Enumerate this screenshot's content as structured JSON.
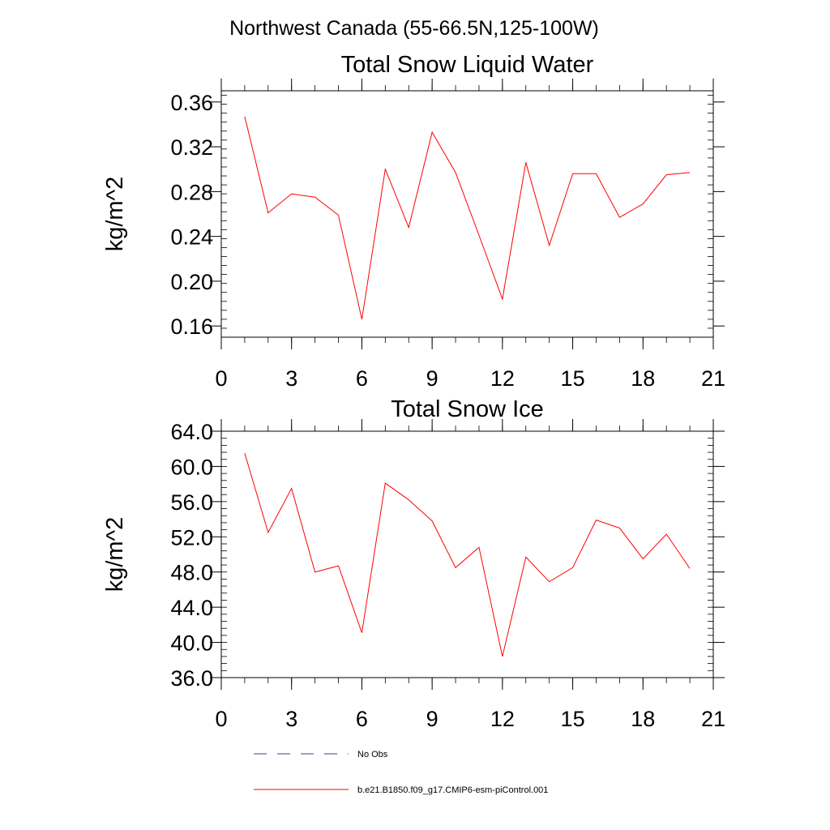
{
  "suptitle": "Northwest Canada (55-66.5N,125-100W)",
  "colors": {
    "series": "#ff0000",
    "obs": "#3b3f8f",
    "axis": "#000000"
  },
  "legend": [
    {
      "label": "No Obs",
      "style": "dashed",
      "color": "#3b3f8f"
    },
    {
      "label": "b.e21.B1850.f09_g17.CMIP6-esm-piControl.001",
      "style": "solid",
      "color": "#ff0000"
    }
  ],
  "chart_data": [
    {
      "type": "line",
      "title": "Total Snow Liquid Water",
      "ylabel": "kg/m^2",
      "xlim": [
        0,
        21
      ],
      "ylim": [
        0.15,
        0.37
      ],
      "xticks": [
        0,
        3,
        6,
        9,
        12,
        15,
        18,
        21
      ],
      "yticks": [
        0.16,
        0.2,
        0.24,
        0.28,
        0.32,
        0.36
      ],
      "yticklabels": [
        "0.16",
        "0.20",
        "0.24",
        "0.28",
        "0.32",
        "0.36"
      ],
      "yminor_step": 0.008,
      "xminor_step": 1,
      "series": [
        {
          "x": [
            1,
            2,
            3,
            4,
            5,
            6,
            7,
            8,
            9,
            10,
            11,
            12,
            13,
            14,
            15,
            16,
            17,
            18,
            19,
            20
          ],
          "values": [
            0.347,
            0.261,
            0.278,
            0.275,
            0.259,
            0.166,
            0.3,
            0.248,
            0.333,
            0.297,
            0.241,
            0.184,
            0.306,
            0.232,
            0.296,
            0.296,
            0.257,
            0.269,
            0.295,
            0.297
          ]
        }
      ]
    },
    {
      "type": "line",
      "title": "Total Snow Ice",
      "ylabel": "kg/m^2",
      "xlim": [
        0,
        21
      ],
      "ylim": [
        36,
        64
      ],
      "xticks": [
        0,
        3,
        6,
        9,
        12,
        15,
        18,
        21
      ],
      "yticks": [
        36,
        40,
        44,
        48,
        52,
        56,
        60,
        64
      ],
      "yticklabels": [
        "36.0",
        "40.0",
        "44.0",
        "48.0",
        "52.0",
        "56.0",
        "60.0",
        "64.0"
      ],
      "yminor_step": 0.8,
      "xminor_step": 1,
      "series": [
        {
          "x": [
            1,
            2,
            3,
            4,
            5,
            6,
            7,
            8,
            9,
            10,
            11,
            12,
            13,
            14,
            15,
            16,
            17,
            18,
            19,
            20
          ],
          "values": [
            61.5,
            52.5,
            57.5,
            48.0,
            48.7,
            41.1,
            58.1,
            56.2,
            53.8,
            48.5,
            50.8,
            38.4,
            49.7,
            46.9,
            48.5,
            53.9,
            53.0,
            49.5,
            52.3,
            48.4
          ]
        }
      ]
    }
  ]
}
